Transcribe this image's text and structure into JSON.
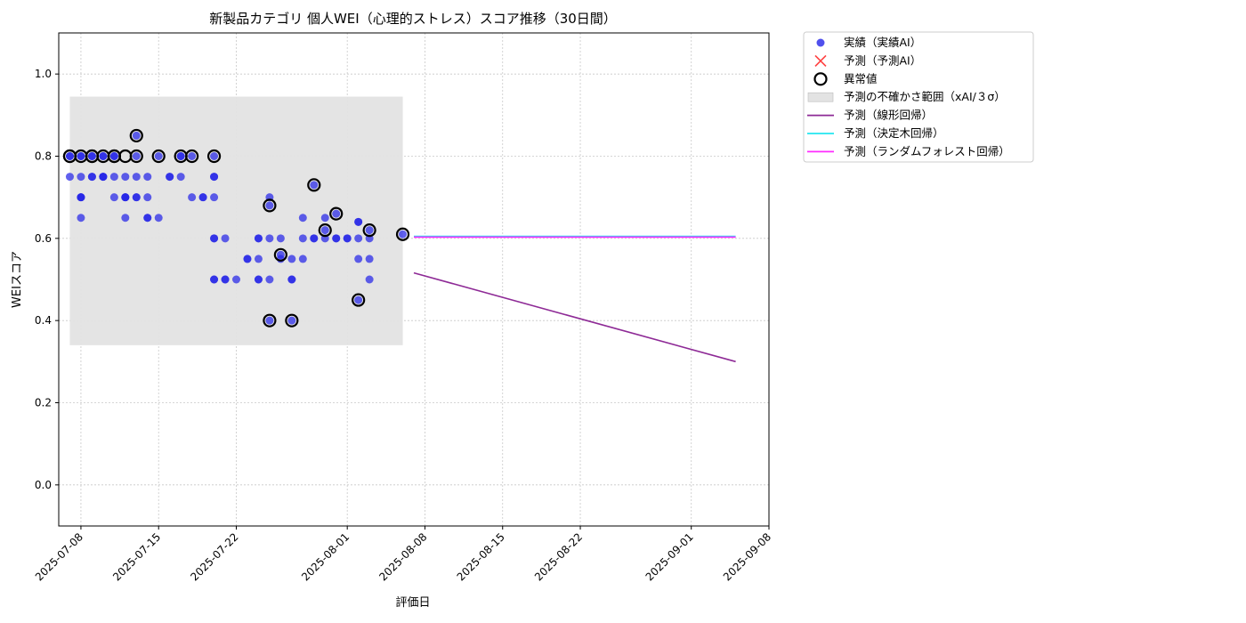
{
  "chart_data": {
    "type": "scatter",
    "title": "新製品カテゴリ 個人WEI（心理的ストレス）スコア推移（30日間）",
    "xlabel": "評価日",
    "ylabel": "WEIスコア",
    "ylim": [
      -0.1,
      1.1
    ],
    "xlim": [
      "2025-07-06",
      "2025-09-08"
    ],
    "grid": true,
    "legend_position": "outside-top-right",
    "yticks": [
      "0.0",
      "0.2",
      "0.4",
      "0.6",
      "0.8",
      "1.0"
    ],
    "xticks": [
      "2025-07-08",
      "2025-07-15",
      "2025-07-22",
      "2025-08-01",
      "2025-08-08",
      "2025-08-15",
      "2025-08-22",
      "2025-09-01",
      "2025-09-08"
    ],
    "colors": {
      "actual": "#2424e8",
      "predicted": "#ff0000",
      "anomaly": "#000000",
      "band": "#e3e3e3",
      "linear": "#8e2a96",
      "tree": "#22e6f0",
      "forest": "#ff2bff"
    },
    "legend": [
      {
        "key": "actual",
        "label": "実績（実績AI）",
        "marker": "dot"
      },
      {
        "key": "predicted",
        "label": "予測（予測AI）",
        "marker": "x"
      },
      {
        "key": "anomaly",
        "label": "異常値",
        "marker": "ring"
      },
      {
        "key": "band",
        "label": "予測の不確かさ範囲（xAI/３σ）",
        "marker": "rect"
      },
      {
        "key": "linear",
        "label": "予測（線形回帰）",
        "marker": "line"
      },
      {
        "key": "tree",
        "label": "予測（決定木回帰）",
        "marker": "line"
      },
      {
        "key": "forest",
        "label": "予測（ランダムフォレスト回帰）",
        "marker": "line"
      }
    ],
    "uncertainty_band": {
      "x_start": "2025-07-07",
      "x_end": "2025-08-06",
      "y_low": 0.34,
      "y_high": 0.945
    },
    "actual_points": [
      [
        "2025-07-07",
        0.75
      ],
      [
        "2025-07-07",
        0.8
      ],
      [
        "2025-07-07",
        0.8
      ],
      [
        "2025-07-08",
        0.75
      ],
      [
        "2025-07-08",
        0.7
      ],
      [
        "2025-07-08",
        0.8
      ],
      [
        "2025-07-08",
        0.8
      ],
      [
        "2025-07-08",
        0.65
      ],
      [
        "2025-07-08",
        0.7
      ],
      [
        "2025-07-08",
        0.7
      ],
      [
        "2025-07-09",
        0.75
      ],
      [
        "2025-07-09",
        0.8
      ],
      [
        "2025-07-09",
        0.75
      ],
      [
        "2025-07-09",
        0.8
      ],
      [
        "2025-07-10",
        0.75
      ],
      [
        "2025-07-10",
        0.8
      ],
      [
        "2025-07-10",
        0.75
      ],
      [
        "2025-07-10",
        0.8
      ],
      [
        "2025-07-10",
        0.75
      ],
      [
        "2025-07-11",
        0.7
      ],
      [
        "2025-07-11",
        0.8
      ],
      [
        "2025-07-11",
        0.75
      ],
      [
        "2025-07-11",
        0.8
      ],
      [
        "2025-07-12",
        0.7
      ],
      [
        "2025-07-12",
        0.65
      ],
      [
        "2025-07-12",
        0.7
      ],
      [
        "2025-07-12",
        0.75
      ],
      [
        "2025-07-12",
        0.7
      ],
      [
        "2025-07-13",
        0.7
      ],
      [
        "2025-07-13",
        0.7
      ],
      [
        "2025-07-13",
        0.8
      ],
      [
        "2025-07-13",
        0.85
      ],
      [
        "2025-07-13",
        0.75
      ],
      [
        "2025-07-14",
        0.7
      ],
      [
        "2025-07-14",
        0.65
      ],
      [
        "2025-07-14",
        0.75
      ],
      [
        "2025-07-14",
        0.65
      ],
      [
        "2025-07-15",
        0.65
      ],
      [
        "2025-07-15",
        0.8
      ],
      [
        "2025-07-16",
        0.75
      ],
      [
        "2025-07-16",
        0.75
      ],
      [
        "2025-07-17",
        0.8
      ],
      [
        "2025-07-17",
        0.75
      ],
      [
        "2025-07-17",
        0.8
      ],
      [
        "2025-07-18",
        0.8
      ],
      [
        "2025-07-18",
        0.7
      ],
      [
        "2025-07-19",
        0.7
      ],
      [
        "2025-07-19",
        0.7
      ],
      [
        "2025-07-20",
        0.8
      ],
      [
        "2025-07-20",
        0.75
      ],
      [
        "2025-07-20",
        0.6
      ],
      [
        "2025-07-20",
        0.7
      ],
      [
        "2025-07-20",
        0.75
      ],
      [
        "2025-07-20",
        0.5
      ],
      [
        "2025-07-20",
        0.6
      ],
      [
        "2025-07-20",
        0.5
      ],
      [
        "2025-07-21",
        0.6
      ],
      [
        "2025-07-21",
        0.5
      ],
      [
        "2025-07-21",
        0.5
      ],
      [
        "2025-07-22",
        0.5
      ],
      [
        "2025-07-23",
        0.55
      ],
      [
        "2025-07-23",
        0.55
      ],
      [
        "2025-07-24",
        0.6
      ],
      [
        "2025-07-24",
        0.5
      ],
      [
        "2025-07-24",
        0.55
      ],
      [
        "2025-07-24",
        0.5
      ],
      [
        "2025-07-24",
        0.6
      ],
      [
        "2025-07-25",
        0.4
      ],
      [
        "2025-07-25",
        0.5
      ],
      [
        "2025-07-25",
        0.68
      ],
      [
        "2025-07-25",
        0.6
      ],
      [
        "2025-07-25",
        0.7
      ],
      [
        "2025-07-26",
        0.6
      ],
      [
        "2025-07-26",
        0.56
      ],
      [
        "2025-07-26",
        0.55
      ],
      [
        "2025-07-27",
        0.4
      ],
      [
        "2025-07-27",
        0.5
      ],
      [
        "2025-07-27",
        0.55
      ],
      [
        "2025-07-27",
        0.5
      ],
      [
        "2025-07-28",
        0.6
      ],
      [
        "2025-07-28",
        0.55
      ],
      [
        "2025-07-28",
        0.65
      ],
      [
        "2025-07-29",
        0.6
      ],
      [
        "2025-07-29",
        0.73
      ],
      [
        "2025-07-29",
        0.6
      ],
      [
        "2025-07-30",
        0.6
      ],
      [
        "2025-07-30",
        0.62
      ],
      [
        "2025-07-30",
        0.65
      ],
      [
        "2025-07-31",
        0.6
      ],
      [
        "2025-07-31",
        0.66
      ],
      [
        "2025-07-31",
        0.6
      ],
      [
        "2025-08-01",
        0.6
      ],
      [
        "2025-08-01",
        0.6
      ],
      [
        "2025-08-02",
        0.64
      ],
      [
        "2025-08-02",
        0.6
      ],
      [
        "2025-08-02",
        0.45
      ],
      [
        "2025-08-02",
        0.55
      ],
      [
        "2025-08-02",
        0.64
      ],
      [
        "2025-08-03",
        0.62
      ],
      [
        "2025-08-03",
        0.6
      ],
      [
        "2025-08-03",
        0.55
      ],
      [
        "2025-08-03",
        0.5
      ],
      [
        "2025-08-06",
        0.61
      ]
    ],
    "anomaly_points": [
      [
        "2025-07-07",
        0.8
      ],
      [
        "2025-07-07",
        0.8
      ],
      [
        "2025-07-08",
        0.8
      ],
      [
        "2025-07-09",
        0.8
      ],
      [
        "2025-07-09",
        0.8
      ],
      [
        "2025-07-10",
        0.8
      ],
      [
        "2025-07-11",
        0.8
      ],
      [
        "2025-07-11",
        0.8
      ],
      [
        "2025-07-12",
        0.8
      ],
      [
        "2025-07-13",
        0.8
      ],
      [
        "2025-07-13",
        0.85
      ],
      [
        "2025-07-15",
        0.8
      ],
      [
        "2025-07-17",
        0.8
      ],
      [
        "2025-07-18",
        0.8
      ],
      [
        "2025-07-20",
        0.8
      ],
      [
        "2025-07-25",
        0.4
      ],
      [
        "2025-07-25",
        0.68
      ],
      [
        "2025-07-26",
        0.56
      ],
      [
        "2025-07-27",
        0.4
      ],
      [
        "2025-07-29",
        0.73
      ],
      [
        "2025-07-30",
        0.62
      ],
      [
        "2025-07-31",
        0.66
      ],
      [
        "2025-08-02",
        0.45
      ],
      [
        "2025-08-03",
        0.62
      ],
      [
        "2025-08-06",
        0.61
      ]
    ],
    "series": [
      {
        "key": "linear",
        "name": "予測（線形回帰）",
        "points": [
          [
            "2025-08-07",
            0.516
          ],
          [
            "2025-09-05",
            0.3
          ]
        ]
      },
      {
        "key": "tree",
        "name": "予測（決定木回帰）",
        "points": [
          [
            "2025-08-07",
            0.605
          ],
          [
            "2025-09-05",
            0.605
          ]
        ]
      },
      {
        "key": "forest",
        "name": "予測（ランダムフォレスト回帰）",
        "points": [
          [
            "2025-08-07",
            0.603
          ],
          [
            "2025-09-05",
            0.603
          ]
        ]
      }
    ]
  }
}
